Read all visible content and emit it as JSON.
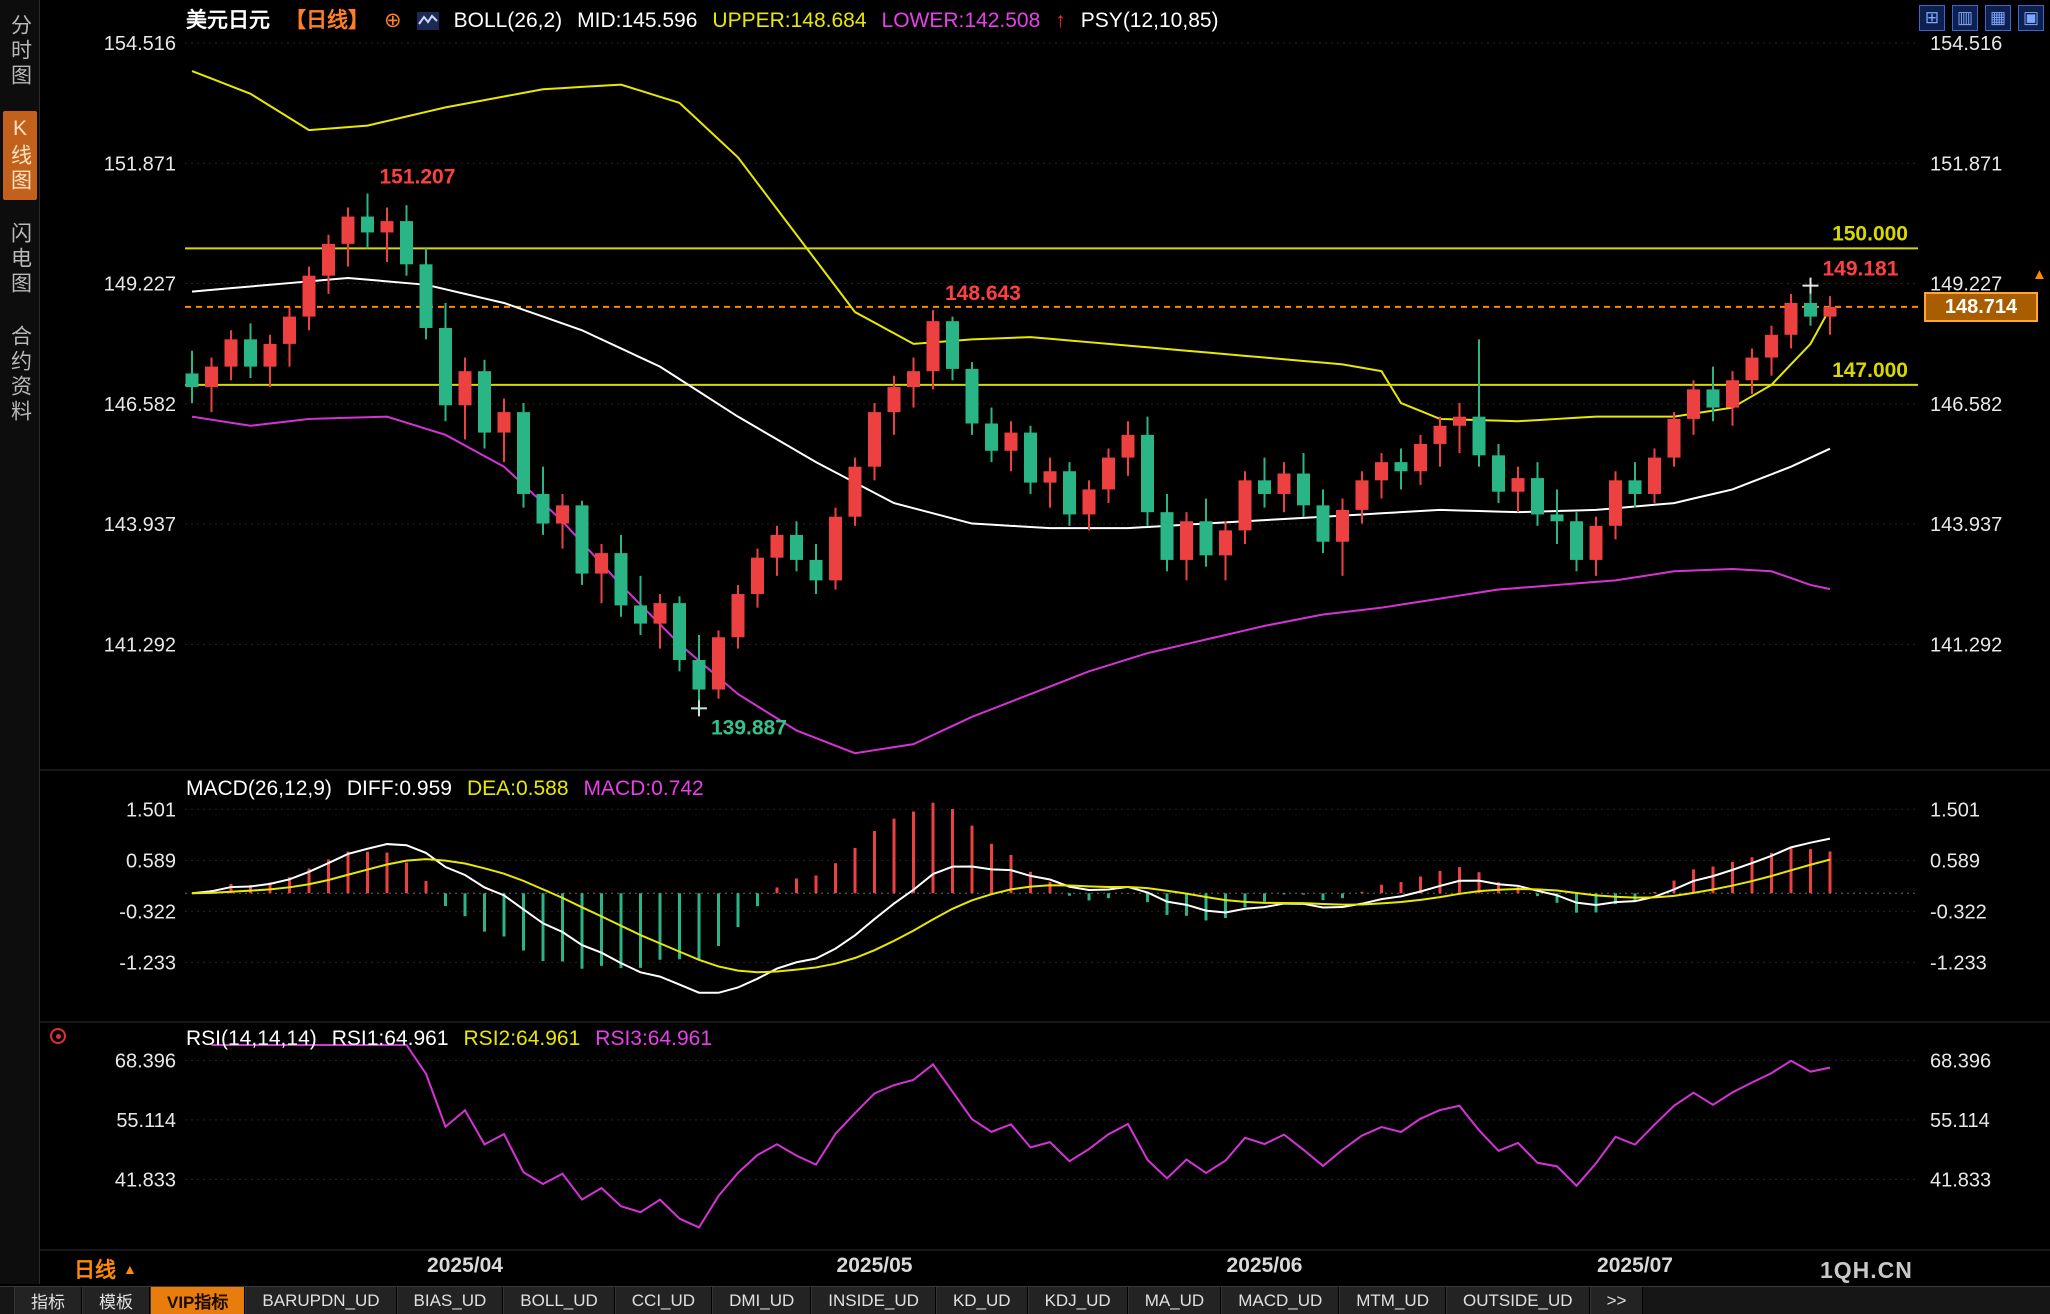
{
  "sidebar": {
    "items": [
      {
        "label": "分时图",
        "active": false
      },
      {
        "label": "K线图",
        "active": true
      },
      {
        "label": "闪电图",
        "active": false
      },
      {
        "label": "合约资料",
        "active": false
      }
    ]
  },
  "header": {
    "symbol": "美元日元",
    "period_tag": "【日线】",
    "boll": "BOLL(26,2)",
    "mid": "MID:145.596",
    "upper": "UPPER:148.684",
    "lower": "LOWER:142.508",
    "psy": "PSY(12,10,85)"
  },
  "macd_header": {
    "label": "MACD(26,12,9)",
    "diff": "DIFF:0.959",
    "dea": "DEA:0.588",
    "macd": "MACD:0.742"
  },
  "rsi_header": {
    "label": "RSI(14,14,14)",
    "rsi1": "RSI1:64.961",
    "rsi2": "RSI2:64.961",
    "rsi3": "RSI3:64.961"
  },
  "price_box": {
    "value": "148.714"
  },
  "icons": {
    "circle_plus": "⊕",
    "up_arrow": "↑",
    "triangle_up": "▲"
  },
  "top_icons": [
    {
      "name": "grid-layout-icon",
      "glyph": "⊞"
    },
    {
      "name": "column-layout-icon",
      "glyph": "▥"
    },
    {
      "name": "multi-panel-layout-icon",
      "glyph": "▦"
    },
    {
      "name": "single-panel-layout-icon",
      "glyph": "▣"
    }
  ],
  "bottom": {
    "period_label": "日线",
    "watermark": "1QH.CN",
    "tabs": [
      {
        "label": "指标",
        "active": false
      },
      {
        "label": "模板",
        "active": false
      },
      {
        "label": "VIP指标",
        "active": true
      },
      {
        "label": "BARUPDN_UD",
        "active": false
      },
      {
        "label": "BIAS_UD",
        "active": false
      },
      {
        "label": "BOLL_UD",
        "active": false
      },
      {
        "label": "CCI_UD",
        "active": false
      },
      {
        "label": "DMI_UD",
        "active": false
      },
      {
        "label": "INSIDE_UD",
        "active": false
      },
      {
        "label": "KD_UD",
        "active": false
      },
      {
        "label": "KDJ_UD",
        "active": false
      },
      {
        "label": "MA_UD",
        "active": false
      },
      {
        "label": "MACD_UD",
        "active": false
      },
      {
        "label": "MTM_UD",
        "active": false
      },
      {
        "label": "OUTSIDE_UD",
        "active": false
      },
      {
        "label": ">>",
        "active": false
      }
    ]
  },
  "chart_data": {
    "type": "candlestick",
    "symbol": "美元日元",
    "period": "日线",
    "y_ticks_price": [
      "154.516",
      "151.871",
      "149.227",
      "146.582",
      "143.937",
      "141.292"
    ],
    "y_ticks_macd": [
      "1.501",
      "0.589",
      "-0.322",
      "-1.233"
    ],
    "y_ticks_rsi": [
      "68.396",
      "55.114",
      "41.833"
    ],
    "x_labels": [
      {
        "label": "2025/04",
        "index": 14
      },
      {
        "label": "2025/05",
        "index": 35
      },
      {
        "label": "2025/06",
        "index": 55
      },
      {
        "label": "2025/07",
        "index": 74
      }
    ],
    "hlines": [
      {
        "value": 150.0,
        "label": "150.000"
      },
      {
        "value": 147.0,
        "label": "147.000"
      }
    ],
    "price_line": {
      "value": 148.714
    },
    "annotations": [
      {
        "text": "151.207",
        "index": 9,
        "price": 151.207,
        "color": "#ff4040",
        "placement": "above"
      },
      {
        "text": "148.643",
        "index": 38,
        "price": 148.643,
        "color": "#ff4040",
        "placement": "above"
      },
      {
        "text": "149.181",
        "index": 83,
        "price": 149.181,
        "color": "#ff4040",
        "placement": "above"
      },
      {
        "text": "139.887",
        "index": 26,
        "price": 139.887,
        "color": "#35c08e",
        "placement": "below"
      }
    ],
    "markers": [
      {
        "index": 83,
        "price": 149.181,
        "color": "#e8e8e8"
      },
      {
        "index": 26,
        "price": 139.887,
        "color": "#bfe8d8"
      }
    ],
    "candles": [
      [
        147.25,
        147.75,
        146.6,
        146.95
      ],
      [
        146.95,
        147.6,
        146.4,
        147.4
      ],
      [
        147.4,
        148.2,
        147.1,
        148.0
      ],
      [
        148.0,
        148.35,
        147.15,
        147.4
      ],
      [
        147.4,
        148.1,
        146.95,
        147.9
      ],
      [
        147.9,
        148.7,
        147.4,
        148.5
      ],
      [
        148.5,
        149.6,
        148.2,
        149.4
      ],
      [
        149.4,
        150.3,
        149.0,
        150.1
      ],
      [
        150.1,
        150.9,
        149.6,
        150.7
      ],
      [
        150.7,
        151.207,
        150.0,
        150.35
      ],
      [
        150.35,
        150.9,
        149.7,
        150.6
      ],
      [
        150.6,
        150.95,
        149.4,
        149.65
      ],
      [
        149.65,
        150.0,
        148.0,
        148.25
      ],
      [
        148.25,
        148.8,
        146.2,
        146.55
      ],
      [
        146.55,
        147.6,
        145.8,
        147.3
      ],
      [
        147.3,
        147.55,
        145.6,
        145.95
      ],
      [
        145.95,
        146.7,
        145.3,
        146.4
      ],
      [
        146.4,
        146.6,
        144.3,
        144.6
      ],
      [
        144.6,
        145.2,
        143.7,
        143.95
      ],
      [
        143.95,
        144.6,
        143.4,
        144.35
      ],
      [
        144.35,
        144.45,
        142.6,
        142.85
      ],
      [
        142.85,
        143.5,
        142.2,
        143.3
      ],
      [
        143.3,
        143.7,
        141.9,
        142.15
      ],
      [
        142.15,
        142.8,
        141.5,
        141.75
      ],
      [
        141.75,
        142.4,
        141.2,
        142.2
      ],
      [
        142.2,
        142.35,
        140.7,
        140.95
      ],
      [
        140.95,
        141.5,
        139.887,
        140.3
      ],
      [
        140.3,
        141.6,
        140.1,
        141.45
      ],
      [
        141.45,
        142.6,
        141.2,
        142.4
      ],
      [
        142.4,
        143.4,
        142.1,
        143.2
      ],
      [
        143.2,
        143.9,
        142.8,
        143.7
      ],
      [
        143.7,
        144.0,
        142.9,
        143.15
      ],
      [
        143.15,
        143.5,
        142.4,
        142.7
      ],
      [
        142.7,
        144.3,
        142.5,
        144.1
      ],
      [
        144.1,
        145.4,
        143.9,
        145.2
      ],
      [
        145.2,
        146.6,
        144.9,
        146.4
      ],
      [
        146.4,
        147.2,
        145.9,
        146.95
      ],
      [
        146.95,
        147.6,
        146.5,
        147.3
      ],
      [
        147.3,
        148.643,
        146.9,
        148.4
      ],
      [
        148.4,
        148.5,
        147.1,
        147.35
      ],
      [
        147.35,
        147.5,
        145.9,
        146.15
      ],
      [
        146.15,
        146.5,
        145.3,
        145.55
      ],
      [
        145.55,
        146.2,
        145.1,
        145.95
      ],
      [
        145.95,
        146.1,
        144.6,
        144.85
      ],
      [
        144.85,
        145.4,
        144.3,
        145.1
      ],
      [
        145.1,
        145.3,
        143.9,
        144.15
      ],
      [
        144.15,
        144.9,
        143.8,
        144.7
      ],
      [
        144.7,
        145.6,
        144.4,
        145.4
      ],
      [
        145.4,
        146.2,
        145.0,
        145.9
      ],
      [
        145.9,
        146.3,
        143.9,
        144.2
      ],
      [
        144.2,
        144.6,
        142.9,
        143.15
      ],
      [
        143.15,
        144.2,
        142.7,
        144.0
      ],
      [
        144.0,
        144.5,
        143.0,
        143.25
      ],
      [
        143.25,
        144.0,
        142.7,
        143.8
      ],
      [
        143.8,
        145.1,
        143.5,
        144.9
      ],
      [
        144.9,
        145.4,
        144.3,
        144.6
      ],
      [
        144.6,
        145.3,
        144.2,
        145.05
      ],
      [
        145.05,
        145.5,
        144.1,
        144.35
      ],
      [
        144.35,
        144.7,
        143.3,
        143.55
      ],
      [
        143.55,
        144.5,
        142.8,
        144.25
      ],
      [
        144.25,
        145.1,
        143.95,
        144.9
      ],
      [
        144.9,
        145.5,
        144.5,
        145.3
      ],
      [
        145.3,
        145.6,
        144.7,
        145.1
      ],
      [
        145.1,
        145.9,
        144.8,
        145.7
      ],
      [
        145.7,
        146.3,
        145.2,
        146.1
      ],
      [
        146.1,
        146.6,
        145.5,
        146.3
      ],
      [
        146.3,
        148.0,
        145.2,
        145.45
      ],
      [
        145.45,
        145.7,
        144.4,
        144.65
      ],
      [
        144.65,
        145.2,
        144.2,
        144.95
      ],
      [
        144.95,
        145.3,
        143.9,
        144.15
      ],
      [
        144.15,
        144.7,
        143.5,
        144.0
      ],
      [
        144.0,
        144.2,
        142.9,
        143.15
      ],
      [
        143.15,
        144.1,
        142.8,
        143.9
      ],
      [
        143.9,
        145.1,
        143.6,
        144.9
      ],
      [
        144.9,
        145.3,
        144.3,
        144.6
      ],
      [
        144.6,
        145.6,
        144.4,
        145.4
      ],
      [
        145.4,
        146.4,
        145.2,
        146.25
      ],
      [
        146.25,
        147.1,
        145.9,
        146.9
      ],
      [
        146.9,
        147.4,
        146.2,
        146.5
      ],
      [
        146.5,
        147.3,
        146.1,
        147.1
      ],
      [
        147.1,
        147.8,
        146.8,
        147.6
      ],
      [
        147.6,
        148.3,
        147.2,
        148.1
      ],
      [
        148.1,
        149.0,
        147.8,
        148.8
      ],
      [
        148.8,
        149.181,
        148.3,
        148.5
      ],
      [
        148.5,
        148.95,
        148.1,
        148.714
      ]
    ],
    "boll_upper_points": [
      [
        0,
        153.9
      ],
      [
        3,
        153.4
      ],
      [
        6,
        152.6
      ],
      [
        9,
        152.7
      ],
      [
        13,
        153.1
      ],
      [
        18,
        153.5
      ],
      [
        22,
        153.6
      ],
      [
        25,
        153.2
      ],
      [
        28,
        152.0
      ],
      [
        31,
        150.3
      ],
      [
        34,
        148.6
      ],
      [
        37,
        147.9
      ],
      [
        40,
        148.0
      ],
      [
        43,
        148.05
      ],
      [
        47,
        147.9
      ],
      [
        51,
        147.75
      ],
      [
        55,
        147.6
      ],
      [
        59,
        147.45
      ],
      [
        61,
        147.3
      ],
      [
        62,
        146.6
      ],
      [
        64,
        146.25
      ],
      [
        68,
        146.2
      ],
      [
        72,
        146.3
      ],
      [
        76,
        146.3
      ],
      [
        79,
        146.5
      ],
      [
        81,
        147.0
      ],
      [
        83,
        147.9
      ],
      [
        84,
        148.684
      ]
    ],
    "boll_mid_points": [
      [
        0,
        149.05
      ],
      [
        4,
        149.2
      ],
      [
        8,
        149.35
      ],
      [
        12,
        149.2
      ],
      [
        16,
        148.8
      ],
      [
        20,
        148.2
      ],
      [
        24,
        147.4
      ],
      [
        28,
        146.3
      ],
      [
        32,
        145.3
      ],
      [
        36,
        144.4
      ],
      [
        40,
        143.95
      ],
      [
        44,
        143.85
      ],
      [
        48,
        143.85
      ],
      [
        52,
        143.95
      ],
      [
        56,
        144.05
      ],
      [
        60,
        144.15
      ],
      [
        64,
        144.25
      ],
      [
        68,
        144.2
      ],
      [
        72,
        144.25
      ],
      [
        76,
        144.4
      ],
      [
        79,
        144.7
      ],
      [
        82,
        145.2
      ],
      [
        84,
        145.596
      ]
    ],
    "boll_lower_points": [
      [
        0,
        146.3
      ],
      [
        3,
        146.1
      ],
      [
        6,
        146.25
      ],
      [
        10,
        146.3
      ],
      [
        13,
        145.9
      ],
      [
        16,
        145.2
      ],
      [
        19,
        144.0
      ],
      [
        22,
        142.6
      ],
      [
        25,
        141.3
      ],
      [
        28,
        140.2
      ],
      [
        31,
        139.4
      ],
      [
        34,
        138.9
      ],
      [
        37,
        139.1
      ],
      [
        40,
        139.7
      ],
      [
        43,
        140.2
      ],
      [
        46,
        140.7
      ],
      [
        49,
        141.1
      ],
      [
        52,
        141.4
      ],
      [
        55,
        141.7
      ],
      [
        58,
        141.95
      ],
      [
        61,
        142.1
      ],
      [
        64,
        142.3
      ],
      [
        67,
        142.5
      ],
      [
        70,
        142.6
      ],
      [
        73,
        142.7
      ],
      [
        76,
        142.9
      ],
      [
        79,
        142.95
      ],
      [
        81,
        142.9
      ],
      [
        83,
        142.6
      ],
      [
        84,
        142.508
      ]
    ],
    "colors": {
      "up": "#ed4040",
      "down": "#2ab586",
      "boll_upper": "#e8e800",
      "boll_mid": "#ffffff",
      "boll_lower": "#d633d6",
      "macd_diff": "#ffffff",
      "macd_dea": "#e8e800",
      "rsi": "#d633d6",
      "hline": "#d8d800",
      "price_line": "#ff8800",
      "tick_label": "#e8e8e8",
      "month_label": "#d9d9d9"
    }
  }
}
